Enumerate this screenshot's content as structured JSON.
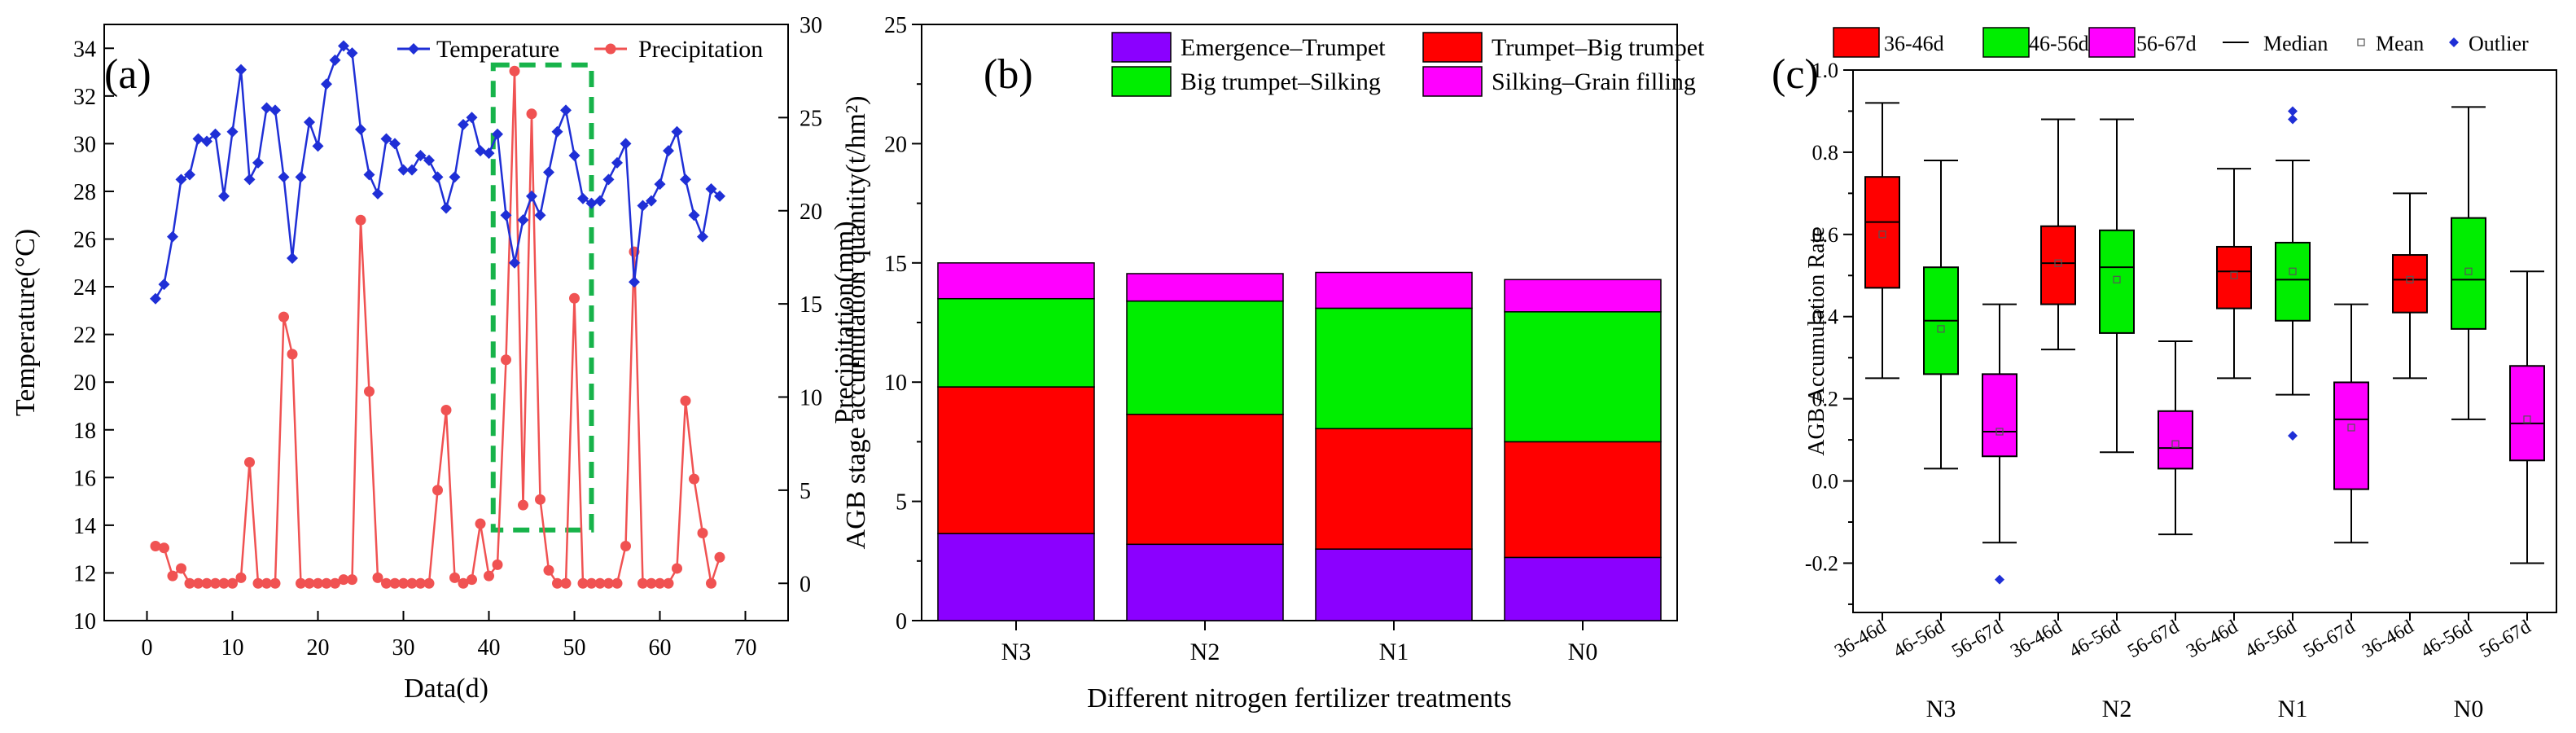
{
  "chart_data": [
    {
      "panel": "(a)",
      "type": "line",
      "xlabel": "Data(d)",
      "ylabel": "Temperature(°C)",
      "y2label": "Precipitation(mm)",
      "xlim": [
        -5,
        75
      ],
      "ylim": [
        10,
        35
      ],
      "y2lim": [
        -2,
        30
      ],
      "xticks": [
        0,
        10,
        20,
        30,
        40,
        50,
        60,
        70
      ],
      "yticks": [
        10,
        12,
        14,
        16,
        18,
        20,
        22,
        24,
        26,
        28,
        30,
        32,
        34
      ],
      "y2ticks": [
        0,
        5,
        10,
        15,
        20,
        25,
        30
      ],
      "legend_position": "top-right",
      "colors": {
        "temperature": "#1f2fd6",
        "precipitation": "#f05252",
        "highlight": "#17b34a"
      },
      "highlight_range": {
        "x": [
          40.5,
          52
        ],
        "temperature": [
          13.8,
          33.3
        ]
      },
      "series": [
        {
          "name": "Temperature",
          "axis": "left",
          "x": [
            1,
            2,
            3,
            4,
            5,
            6,
            7,
            8,
            9,
            10,
            11,
            12,
            13,
            14,
            15,
            16,
            17,
            18,
            19,
            20,
            21,
            22,
            23,
            24,
            25,
            26,
            27,
            28,
            29,
            30,
            31,
            32,
            33,
            34,
            35,
            36,
            37,
            38,
            39,
            40,
            41,
            42,
            43,
            44,
            45,
            46,
            47,
            48,
            49,
            50,
            51,
            52,
            53,
            54,
            55,
            56,
            57,
            58,
            59,
            60,
            61,
            62,
            63,
            64,
            65,
            66,
            67
          ],
          "values": [
            23.5,
            24.1,
            26.1,
            28.5,
            28.7,
            30.2,
            30.1,
            30.4,
            27.8,
            30.5,
            33.1,
            28.5,
            29.2,
            31.5,
            31.4,
            28.6,
            25.2,
            28.6,
            30.9,
            29.9,
            32.5,
            33.5,
            34.1,
            33.8,
            30.6,
            28.7,
            27.9,
            30.2,
            30.0,
            28.9,
            28.9,
            29.5,
            29.3,
            28.6,
            27.3,
            28.6,
            30.8,
            31.1,
            29.7,
            29.6,
            30.4,
            27.0,
            25.0,
            26.8,
            27.8,
            27.0,
            28.8,
            30.5,
            31.4,
            29.5,
            27.7,
            27.5,
            27.6,
            28.5,
            29.2,
            30.0,
            24.2,
            27.4,
            27.6,
            28.3,
            29.7,
            30.5,
            28.5,
            27.0,
            26.1,
            28.1,
            27.8
          ]
        },
        {
          "name": "Precipitation",
          "axis": "right",
          "x": [
            1,
            2,
            3,
            4,
            5,
            6,
            7,
            8,
            9,
            10,
            11,
            12,
            13,
            14,
            15,
            16,
            17,
            18,
            19,
            20,
            21,
            22,
            23,
            24,
            25,
            26,
            27,
            28,
            29,
            30,
            31,
            32,
            33,
            34,
            35,
            36,
            37,
            38,
            39,
            40,
            41,
            42,
            43,
            44,
            45,
            46,
            47,
            48,
            49,
            50,
            51,
            52,
            53,
            54,
            55,
            56,
            57,
            58,
            59,
            60,
            61,
            62,
            63,
            64,
            65,
            66,
            67
          ],
          "values": [
            2.0,
            1.9,
            0.4,
            0.8,
            0.0,
            0.0,
            0.0,
            0.0,
            0.0,
            0.0,
            0.3,
            6.5,
            0.0,
            0.0,
            0.0,
            14.3,
            12.3,
            0.0,
            0.0,
            0.0,
            0.0,
            0.0,
            0.2,
            0.2,
            19.5,
            10.3,
            0.3,
            0.0,
            0.0,
            0.0,
            0.0,
            0.0,
            0.0,
            5.0,
            9.3,
            0.3,
            0.0,
            0.2,
            3.2,
            0.4,
            1.0,
            12.0,
            27.5,
            4.2,
            25.2,
            4.5,
            0.7,
            0.0,
            0.0,
            15.3,
            0.0,
            0.0,
            0.0,
            0.0,
            0.0,
            2.0,
            17.8,
            0.0,
            0.0,
            0.0,
            0.0,
            0.8,
            9.8,
            5.6,
            2.7,
            0.0,
            1.4
          ]
        }
      ]
    },
    {
      "panel": "(b)",
      "type": "bar",
      "stacked": true,
      "xlabel": "Different nitrogen fertilizer treatments",
      "ylabel": "AGB stage accumulation quantity(t/hm²)",
      "ylim": [
        0,
        25
      ],
      "yticks": [
        0,
        5,
        10,
        15,
        20,
        25
      ],
      "categories": [
        "N3",
        "N2",
        "N1",
        "N0"
      ],
      "legend_position": "top",
      "series": [
        {
          "name": "Emergence–Trumpet",
          "color": "#8b00ff",
          "values": [
            3.65,
            3.2,
            3.0,
            2.65
          ]
        },
        {
          "name": "Trumpet–Big trumpet",
          "color": "#ff0000",
          "values": [
            6.15,
            5.45,
            5.05,
            4.85
          ]
        },
        {
          "name": "Big trumpet–Silking",
          "color": "#00ee00",
          "values": [
            3.7,
            4.75,
            5.05,
            5.45
          ]
        },
        {
          "name": "Silking–Grain filling",
          "color": "#ff00ff",
          "values": [
            1.5,
            1.15,
            1.5,
            1.35
          ]
        }
      ]
    },
    {
      "panel": "(c)",
      "type": "box",
      "xlabel": "",
      "ylabel": "AGB Accumulation Rate",
      "ylim": [
        -0.32,
        1.0
      ],
      "yticks": [
        -0.2,
        0.0,
        0.2,
        0.4,
        0.6,
        0.8,
        1.0
      ],
      "groups": [
        "N3",
        "N2",
        "N1",
        "N0"
      ],
      "periods": [
        "36-46d",
        "46-56d",
        "56-67d"
      ],
      "period_colors": [
        "#ff0000",
        "#00ee00",
        "#ff00ff"
      ],
      "legend": [
        "36-46d",
        "46-56d",
        "56-67d",
        "Median",
        "Mean",
        "Outlier"
      ],
      "legend_position": "top",
      "outlier_color": "#1f2fd6",
      "boxes": [
        {
          "group": "N3",
          "period": "36-46d",
          "whisker_low": 0.25,
          "q1": 0.47,
          "median": 0.63,
          "q3": 0.74,
          "whisker_high": 0.92,
          "mean": 0.6,
          "outliers": []
        },
        {
          "group": "N3",
          "period": "46-56d",
          "whisker_low": 0.03,
          "q1": 0.26,
          "median": 0.39,
          "q3": 0.52,
          "whisker_high": 0.78,
          "mean": 0.37,
          "outliers": []
        },
        {
          "group": "N3",
          "period": "56-67d",
          "whisker_low": -0.15,
          "q1": 0.06,
          "median": 0.12,
          "q3": 0.26,
          "whisker_high": 0.43,
          "mean": 0.12,
          "outliers": [
            -0.24
          ]
        },
        {
          "group": "N2",
          "period": "36-46d",
          "whisker_low": 0.32,
          "q1": 0.43,
          "median": 0.53,
          "q3": 0.62,
          "whisker_high": 0.88,
          "mean": 0.53,
          "outliers": []
        },
        {
          "group": "N2",
          "period": "46-56d",
          "whisker_low": 0.07,
          "q1": 0.36,
          "median": 0.52,
          "q3": 0.61,
          "whisker_high": 0.88,
          "mean": 0.49,
          "outliers": []
        },
        {
          "group": "N2",
          "period": "56-67d",
          "whisker_low": -0.13,
          "q1": 0.03,
          "median": 0.08,
          "q3": 0.17,
          "whisker_high": 0.34,
          "mean": 0.09,
          "outliers": []
        },
        {
          "group": "N1",
          "period": "36-46d",
          "whisker_low": 0.25,
          "q1": 0.42,
          "median": 0.51,
          "q3": 0.57,
          "whisker_high": 0.76,
          "mean": 0.5,
          "outliers": []
        },
        {
          "group": "N1",
          "period": "46-56d",
          "whisker_low": 0.21,
          "q1": 0.39,
          "median": 0.49,
          "q3": 0.58,
          "whisker_high": 0.78,
          "mean": 0.51,
          "outliers": [
            0.9,
            0.88,
            0.11
          ]
        },
        {
          "group": "N1",
          "period": "56-67d",
          "whisker_low": -0.15,
          "q1": -0.02,
          "median": 0.15,
          "q3": 0.24,
          "whisker_high": 0.43,
          "mean": 0.13,
          "outliers": []
        },
        {
          "group": "N0",
          "period": "36-46d",
          "whisker_low": 0.25,
          "q1": 0.41,
          "median": 0.49,
          "q3": 0.55,
          "whisker_high": 0.7,
          "mean": 0.49,
          "outliers": []
        },
        {
          "group": "N0",
          "period": "46-56d",
          "whisker_low": 0.15,
          "q1": 0.37,
          "median": 0.49,
          "q3": 0.64,
          "whisker_high": 0.91,
          "mean": 0.51,
          "outliers": []
        },
        {
          "group": "N0",
          "period": "56-67d",
          "whisker_low": -0.2,
          "q1": 0.05,
          "median": 0.14,
          "q3": 0.28,
          "whisker_high": 0.51,
          "mean": 0.15,
          "outliers": []
        }
      ]
    }
  ]
}
